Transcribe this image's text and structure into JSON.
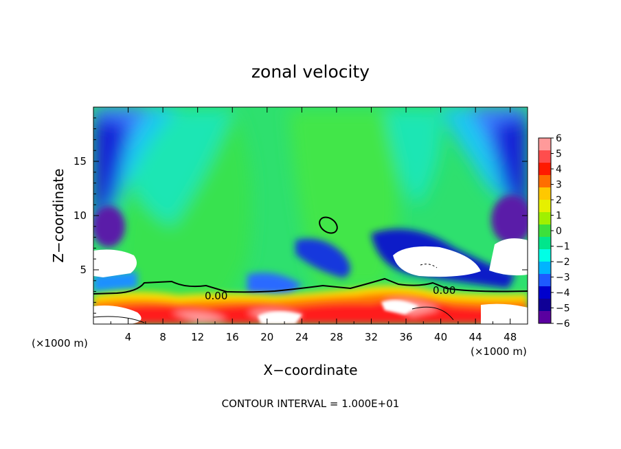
{
  "chart_data": {
    "type": "heatmap",
    "title": "zonal velocity",
    "xlabel": "X−coordinate",
    "ylabel": "Z−coordinate",
    "x_unit_label": "(×1000 m)",
    "z_unit_label": "(×1000 m)",
    "xlim": [
      0,
      50
    ],
    "ylim": [
      0,
      20
    ],
    "x_ticks": [
      4,
      8,
      12,
      16,
      20,
      24,
      28,
      32,
      36,
      40,
      44,
      48
    ],
    "y_ticks": [
      5,
      10,
      15
    ],
    "colorbar": {
      "min": -6,
      "max": 6,
      "labels": [
        "6",
        "5",
        "4",
        "3",
        "2",
        "1",
        "0",
        "−1",
        "−2",
        "−3",
        "−4",
        "−5",
        "−6"
      ],
      "colors": [
        "#ff9a9a",
        "#ff4d4d",
        "#ff1a00",
        "#ff6e00",
        "#ffc800",
        "#e6f000",
        "#a0f000",
        "#3ce03c",
        "#00e68c",
        "#00ffe6",
        "#00b4ff",
        "#1e5aff",
        "#0000cd",
        "#0f0096",
        "#5a00a0"
      ]
    },
    "contour_labels": [
      "0.00",
      "0.00"
    ],
    "footer": "CONTOUR INTERVAL = 1.000E+01"
  }
}
